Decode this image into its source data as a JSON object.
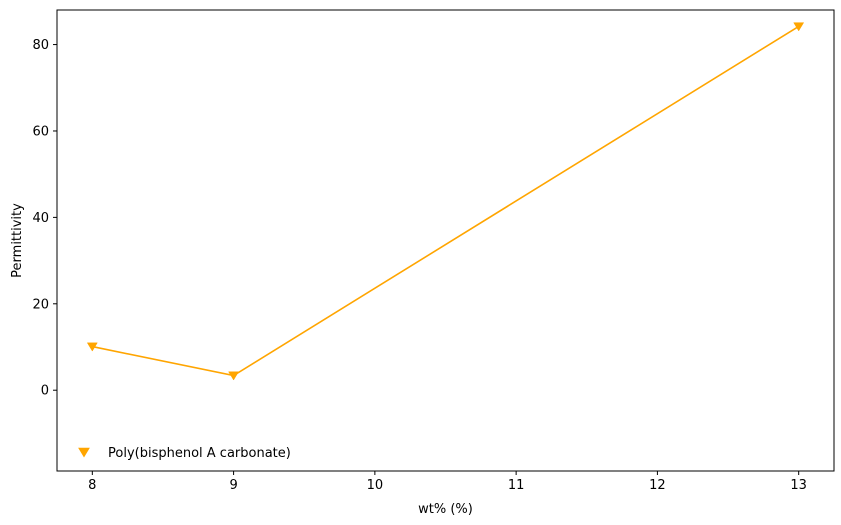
{
  "chart_data": {
    "type": "line",
    "title": "",
    "xlabel": "wt% (%)",
    "ylabel": "Permittivity",
    "xlim": [
      7.75,
      13.25
    ],
    "ylim": [
      -18.7,
      88.0
    ],
    "xticks": [
      8,
      9,
      10,
      11,
      12,
      13
    ],
    "yticks": [
      0,
      20,
      40,
      60,
      80
    ],
    "grid": false,
    "legend_position": "lower-left",
    "series": [
      {
        "name": "Poly(bisphenol A carbonate)",
        "color": "#FFA500",
        "marker": "triangle-down",
        "x": [
          8,
          9,
          13
        ],
        "y": [
          10.1,
          3.4,
          84.2
        ]
      }
    ]
  }
}
